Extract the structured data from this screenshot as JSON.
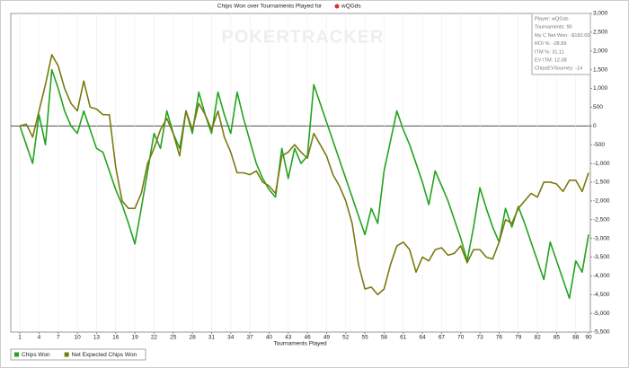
{
  "chart_data": {
    "type": "line",
    "title": "Chips Won over Tournaments Played for",
    "player": "wQGds",
    "watermark": "POKERTRACKER",
    "xlabel": "Tournaments Played",
    "info_box": [
      "Player: wQGds",
      "Tournaments: 90",
      "My C Net Won: -$182.00",
      "ROI %: -28.89",
      "ITM %: 31.11",
      "EV ITM: 12.08",
      "ChipsEV/tourney: -14"
    ],
    "x": [
      1,
      2,
      3,
      4,
      5,
      6,
      7,
      8,
      9,
      10,
      11,
      12,
      13,
      14,
      15,
      16,
      17,
      18,
      19,
      20,
      21,
      22,
      23,
      24,
      25,
      26,
      27,
      28,
      29,
      30,
      31,
      32,
      33,
      34,
      35,
      36,
      37,
      38,
      39,
      40,
      41,
      42,
      43,
      44,
      45,
      46,
      47,
      48,
      49,
      50,
      51,
      52,
      53,
      54,
      55,
      56,
      57,
      58,
      59,
      60,
      61,
      62,
      63,
      64,
      65,
      66,
      67,
      68,
      69,
      70,
      71,
      72,
      73,
      74,
      75,
      76,
      77,
      78,
      79,
      80,
      81,
      82,
      83,
      84,
      85,
      86,
      87,
      88,
      89,
      90
    ],
    "series": [
      {
        "name": "Chips Won",
        "color": "#22a41f",
        "values": [
          0,
          -500,
          -1000,
          300,
          -500,
          1500,
          1000,
          400,
          0,
          -200,
          400,
          -100,
          -600,
          -700,
          -1200,
          -1700,
          -2100,
          -2600,
          -3150,
          -2200,
          -1200,
          -200,
          -600,
          400,
          -200,
          -600,
          400,
          -200,
          900,
          300,
          -200,
          900,
          300,
          -200,
          900,
          200,
          -400,
          -1000,
          -1400,
          -1700,
          -1900,
          -600,
          -1400,
          -600,
          -1000,
          -800,
          1100,
          600,
          100,
          -400,
          -900,
          -1400,
          -1900,
          -2400,
          -2900,
          -2200,
          -2600,
          -1200,
          -400,
          400,
          -100,
          -500,
          -1000,
          -1500,
          -2100,
          -1200,
          -1600,
          -2000,
          -2500,
          -3000,
          -3600,
          -2700,
          -1650,
          -2200,
          -2700,
          -3100,
          -2200,
          -2700,
          -2150,
          -2600,
          -3100,
          -3600,
          -4100,
          -3100,
          -3600,
          -4100,
          -4600,
          -3600,
          -3900,
          -2900
        ]
      },
      {
        "name": "Net Expected Chips Won",
        "color": "#7a7a10",
        "values": [
          0,
          50,
          -300,
          400,
          1100,
          1900,
          1600,
          1000,
          600,
          400,
          1200,
          500,
          450,
          300,
          300,
          -1100,
          -2000,
          -2200,
          -2200,
          -1800,
          -1000,
          -600,
          -100,
          200,
          -200,
          -800,
          400,
          -100,
          600,
          300,
          -100,
          400,
          -300,
          -700,
          -1250,
          -1250,
          -1300,
          -1200,
          -1500,
          -1600,
          -1800,
          -800,
          -700,
          -500,
          -700,
          -860,
          -200,
          -500,
          -800,
          -1300,
          -1600,
          -2000,
          -2600,
          -3700,
          -4350,
          -4300,
          -4500,
          -4350,
          -3700,
          -3200,
          -3100,
          -3300,
          -3900,
          -3500,
          -3600,
          -3300,
          -3250,
          -3450,
          -3400,
          -3200,
          -3650,
          -3300,
          -3300,
          -3500,
          -3550,
          -3100,
          -2500,
          -2600,
          -2200,
          -2000,
          -1800,
          -1900,
          -1500,
          -1500,
          -1550,
          -1750,
          -1450,
          -1450,
          -1750,
          -1250
        ]
      }
    ],
    "xlim": [
      0,
      90
    ],
    "xticks": [
      1,
      4,
      7,
      10,
      13,
      16,
      19,
      22,
      25,
      28,
      31,
      34,
      37,
      40,
      43,
      46,
      49,
      52,
      55,
      58,
      61,
      64,
      67,
      70,
      73,
      76,
      79,
      82,
      85,
      88,
      90
    ],
    "ylim": [
      -5500,
      3000
    ],
    "yticks": [
      {
        "value": 3000,
        "label": "3,000"
      },
      {
        "value": 2500,
        "label": "2,500"
      },
      {
        "value": 2000,
        "label": "2,000"
      },
      {
        "value": 1500,
        "label": "1,500"
      },
      {
        "value": 1000,
        "label": "1,000"
      },
      500,
      0,
      -500,
      {
        "value": -1000,
        "label": "-1,000"
      },
      {
        "value": -1500,
        "label": "-1,500"
      },
      {
        "value": -2000,
        "label": "-2,000"
      },
      {
        "value": -2500,
        "label": "-2,500"
      },
      {
        "value": -3000,
        "label": "-3,000"
      },
      {
        "value": -3500,
        "label": "-3,500"
      },
      {
        "value": -4000,
        "label": "-4,000"
      },
      {
        "value": -4500,
        "label": "-4,500"
      },
      {
        "value": -5000,
        "label": "-5,000"
      },
      {
        "value": -5500,
        "label": "-5,500"
      }
    ],
    "grid": true,
    "legend": "bottom-left"
  }
}
